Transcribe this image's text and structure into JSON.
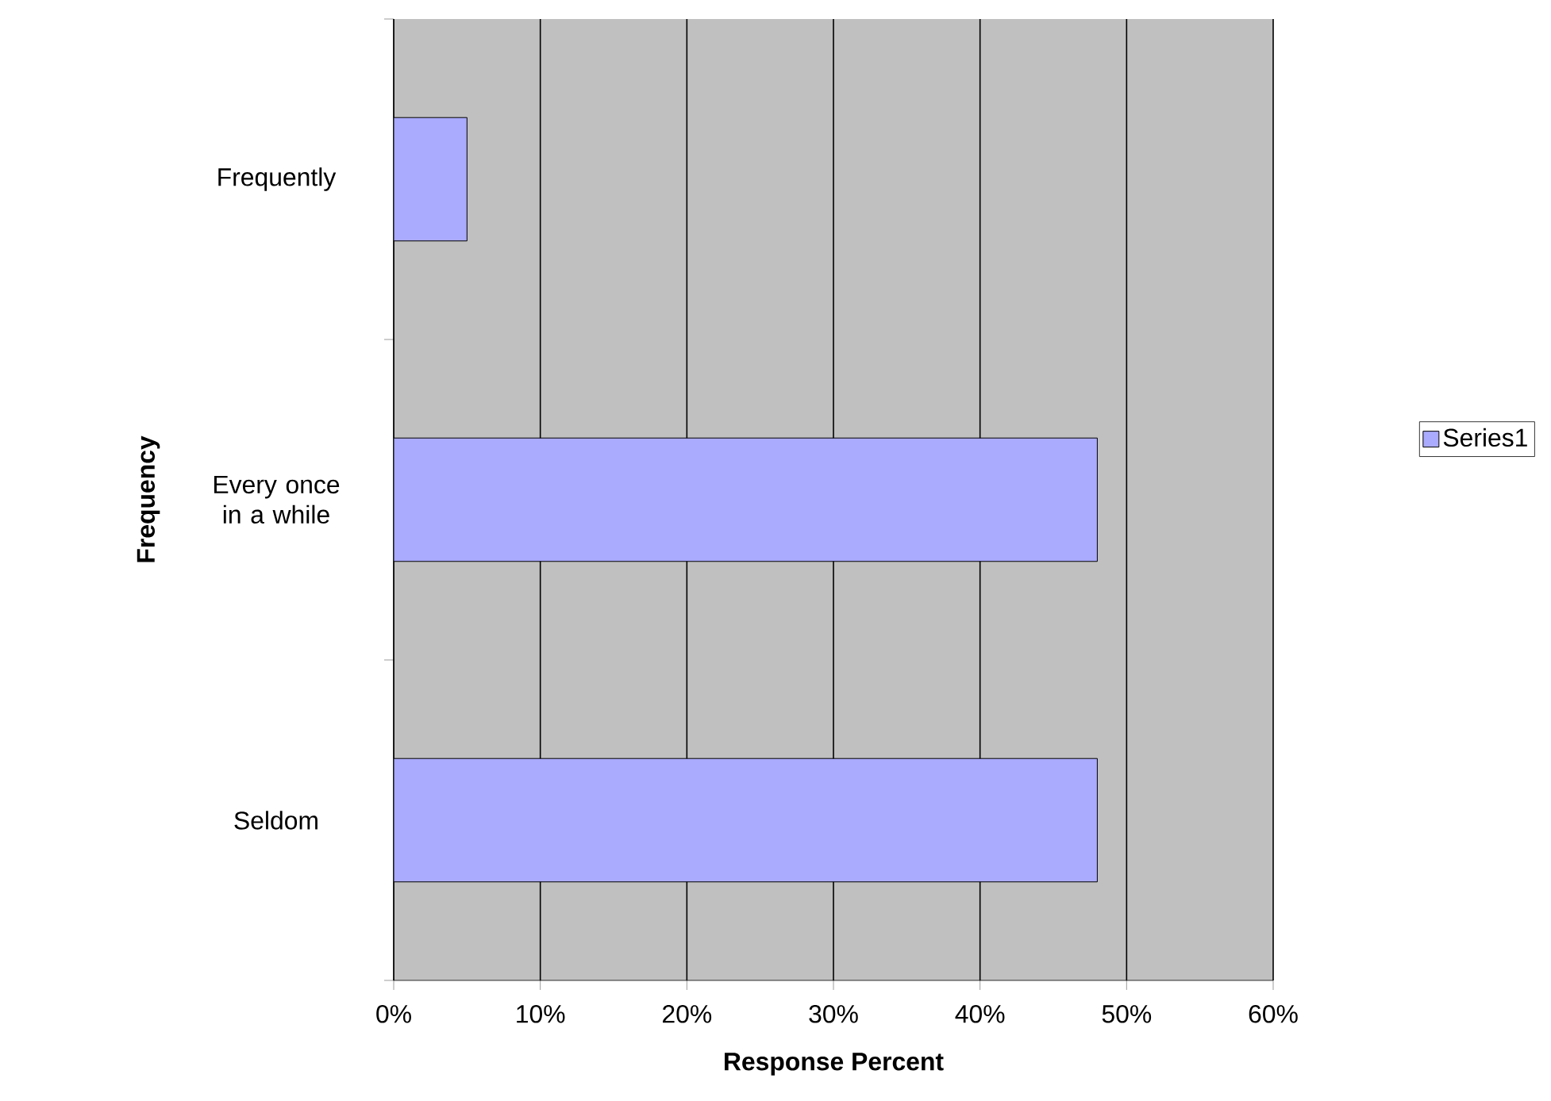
{
  "chart_data": {
    "type": "bar",
    "orientation": "horizontal",
    "xlabel": "Response Percent",
    "ylabel": "Frequency",
    "categories": [
      "Frequently",
      "Every once in a while",
      "Seldom"
    ],
    "series": [
      {
        "name": "Series1",
        "color": "#aaaaff",
        "values": [
          5,
          48,
          48
        ]
      }
    ],
    "xlim": [
      0,
      60
    ],
    "xticks": [
      {
        "value": 0,
        "label": "0%"
      },
      {
        "value": 10,
        "label": "10%"
      },
      {
        "value": 20,
        "label": "20%"
      },
      {
        "value": 30,
        "label": "30%"
      },
      {
        "value": 40,
        "label": "40%"
      },
      {
        "value": 50,
        "label": "50%"
      },
      {
        "value": 60,
        "label": "60%"
      }
    ],
    "grid": "x",
    "legend": "right"
  }
}
